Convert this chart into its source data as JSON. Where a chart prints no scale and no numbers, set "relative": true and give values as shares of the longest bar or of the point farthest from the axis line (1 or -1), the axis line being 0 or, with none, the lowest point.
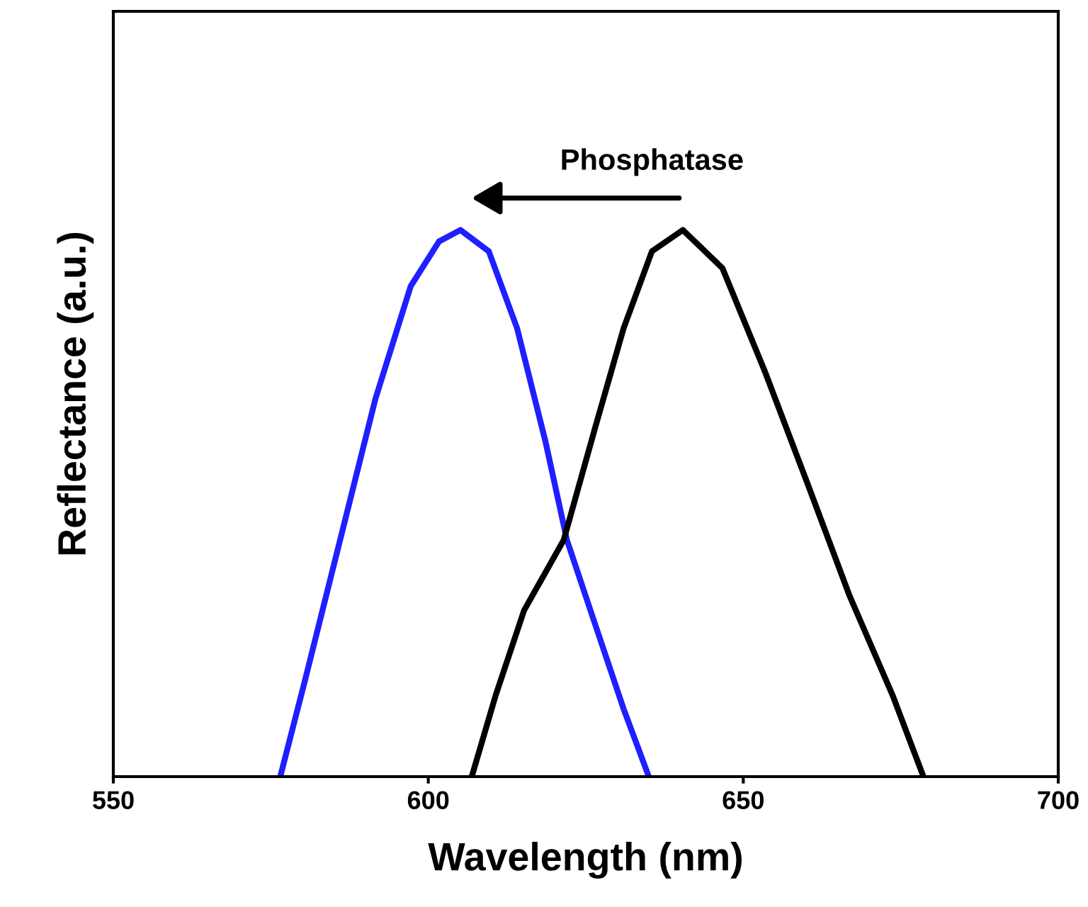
{
  "chart_data": {
    "type": "line",
    "xlabel": "Wavelength (nm)",
    "ylabel": "Reflectance (a.u.)",
    "relative": true,
    "xlim": [
      550,
      700
    ],
    "xticks": [
      550,
      600,
      650,
      700
    ],
    "tick_labels": "x",
    "grid": false,
    "legend": false,
    "marker": "none",
    "line_style": "solid",
    "annotations": [
      "Phosphatase"
    ],
    "series": [
      {
        "color": "#1f1fff",
        "x": [
          576.5,
          580.4,
          586.0,
          591.6,
          597.2,
          601.7,
          605.1,
          609.6,
          614.1,
          618.6,
          622.0,
          626.5,
          631.0,
          635.0
        ],
        "values": [
          0,
          0.175,
          0.433,
          0.691,
          0.897,
          0.979,
          1.0,
          0.961,
          0.82,
          0.613,
          0.433,
          0.278,
          0.124,
          0
        ]
      },
      {
        "color": "#000000",
        "x": [
          606.9,
          610.7,
          615.2,
          621.5,
          626.5,
          631.0,
          635.5,
          640.4,
          646.7,
          653.4,
          660.2,
          666.9,
          673.7,
          678.6
        ],
        "values": [
          0,
          0.149,
          0.304,
          0.433,
          0.639,
          0.82,
          0.961,
          1.0,
          0.93,
          0.742,
          0.536,
          0.33,
          0.149,
          0
        ]
      }
    ]
  }
}
